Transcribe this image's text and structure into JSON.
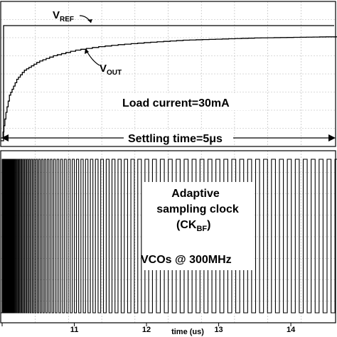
{
  "chart_data": [
    {
      "type": "line",
      "panel": "top",
      "series": [
        {
          "name": "VREF",
          "values_desc": "constant reference level",
          "level": 1.0
        },
        {
          "name": "VOUT",
          "x": [
            10.0,
            10.05,
            10.1,
            10.2,
            10.3,
            10.5,
            10.7,
            11.0,
            11.3,
            11.6,
            12.0,
            12.5,
            13.0,
            13.5,
            14.0,
            14.5,
            14.7
          ],
          "y": [
            0.0,
            0.22,
            0.38,
            0.52,
            0.6,
            0.68,
            0.73,
            0.78,
            0.81,
            0.83,
            0.85,
            0.87,
            0.88,
            0.89,
            0.895,
            0.9,
            0.9
          ]
        }
      ],
      "annotations": {
        "vref_main": "V",
        "vref_sub": "REF",
        "vout_main": "V",
        "vout_sub": "OUT",
        "load": "Load current=30mA",
        "settling": "Settling time=5μs"
      }
    },
    {
      "type": "line",
      "panel": "bottom",
      "series": [
        {
          "name": "CKBF",
          "description": "adaptive sampling clock pulses, frequency decreasing over time",
          "x_start": 10.0,
          "x_end": 14.7
        }
      ],
      "annotations": {
        "clock_line1": "Adaptive",
        "clock_line2": "sampling clock",
        "clock_line3_main": "(CK",
        "clock_line3_sub": "BF",
        "clock_line3_end": ")",
        "vco": "VCOs @ 300MHz"
      }
    }
  ],
  "axis": {
    "xlabel": "time (us)",
    "xlim": [
      10,
      14.6
    ],
    "ticks": [
      "11",
      "12",
      "13",
      "14"
    ]
  }
}
